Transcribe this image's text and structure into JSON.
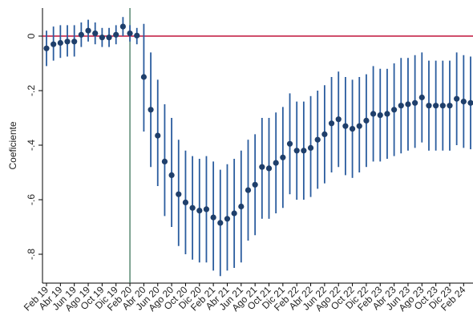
{
  "chart_data": {
    "type": "scatter",
    "title": "",
    "xlabel": "",
    "ylabel": "Coeficiente",
    "ylim": [
      -0.92,
      0.1
    ],
    "yticks": [
      0,
      -0.2,
      -0.4,
      -0.6,
      -0.8
    ],
    "ytick_labels": [
      "0",
      "-.2",
      "-.4",
      "-.6",
      "-.8"
    ],
    "grid": false,
    "legend": "none",
    "x_start": "Feb 19",
    "x_end": "Feb 24",
    "x_tick_labels": [
      "Feb 19",
      "Abr 19",
      "Jun 19",
      "Ago 19",
      "Oct 19",
      "Dic 19",
      "Feb 20",
      "Abr 20",
      "Jun 20",
      "Ago 20",
      "Oct 20",
      "Dic 20",
      "Feb 21",
      "Abr 21",
      "Jun 21",
      "Ago 21",
      "Oct 21",
      "Dic 21",
      "Feb 22",
      "Abr 22",
      "Jun 22",
      "Ago 22",
      "Oct 22",
      "Dic 22",
      "Feb 23",
      "Abr 23",
      "Jun 23",
      "Ago 23",
      "Oct 23",
      "Dic 23",
      "Feb 24"
    ],
    "reference_line": {
      "y": 0,
      "color": "#c0143c"
    },
    "event_line": {
      "x": "Feb 20",
      "color": "#2e6b4f"
    },
    "colors": {
      "point": "#1f3f6b",
      "interval": "#2a5c9e"
    },
    "series": [
      {
        "values": [
          -0.045,
          -0.03,
          -0.025,
          -0.02,
          -0.02,
          0.005,
          0.02,
          0.01,
          -0.005,
          -0.005,
          0.005,
          0.035,
          0.01,
          0.002,
          -0.15,
          -0.27,
          -0.365,
          -0.46,
          -0.51,
          -0.58,
          -0.61,
          -0.63,
          -0.64,
          -0.635,
          -0.665,
          -0.685,
          -0.67,
          -0.65,
          -0.625,
          -0.565,
          -0.545,
          -0.48,
          -0.485,
          -0.465,
          -0.445,
          -0.395,
          -0.42,
          -0.42,
          -0.41,
          -0.38,
          -0.36,
          -0.32,
          -0.305,
          -0.33,
          -0.34,
          -0.33,
          -0.31,
          -0.285,
          -0.29,
          -0.285,
          -0.27,
          -0.255,
          -0.25,
          -0.245,
          -0.225,
          -0.255,
          -0.255,
          -0.255,
          -0.255,
          -0.23,
          -0.24,
          -0.245
        ],
        "lower": [
          -0.11,
          -0.09,
          -0.08,
          -0.075,
          -0.075,
          -0.04,
          -0.02,
          -0.03,
          -0.04,
          -0.04,
          -0.03,
          0.0,
          -0.02,
          -0.03,
          -0.35,
          -0.48,
          -0.55,
          -0.66,
          -0.7,
          -0.77,
          -0.8,
          -0.82,
          -0.83,
          -0.83,
          -0.86,
          -0.88,
          -0.86,
          -0.85,
          -0.83,
          -0.75,
          -0.73,
          -0.67,
          -0.67,
          -0.65,
          -0.63,
          -0.58,
          -0.6,
          -0.6,
          -0.59,
          -0.56,
          -0.54,
          -0.5,
          -0.48,
          -0.51,
          -0.52,
          -0.5,
          -0.48,
          -0.46,
          -0.46,
          -0.45,
          -0.44,
          -0.43,
          -0.42,
          -0.41,
          -0.39,
          -0.42,
          -0.42,
          -0.42,
          -0.42,
          -0.4,
          -0.41,
          -0.415
        ],
        "upper": [
          0.02,
          0.035,
          0.04,
          0.04,
          0.04,
          0.05,
          0.06,
          0.05,
          0.03,
          0.03,
          0.04,
          0.07,
          0.04,
          0.03,
          0.045,
          -0.06,
          -0.16,
          -0.25,
          -0.3,
          -0.38,
          -0.42,
          -0.44,
          -0.45,
          -0.44,
          -0.46,
          -0.49,
          -0.47,
          -0.45,
          -0.42,
          -0.38,
          -0.36,
          -0.3,
          -0.3,
          -0.28,
          -0.26,
          -0.21,
          -0.24,
          -0.24,
          -0.22,
          -0.2,
          -0.18,
          -0.15,
          -0.13,
          -0.15,
          -0.16,
          -0.15,
          -0.14,
          -0.11,
          -0.12,
          -0.12,
          -0.1,
          -0.08,
          -0.08,
          -0.07,
          -0.06,
          -0.09,
          -0.09,
          -0.09,
          -0.09,
          -0.06,
          -0.07,
          -0.075
        ]
      }
    ]
  }
}
